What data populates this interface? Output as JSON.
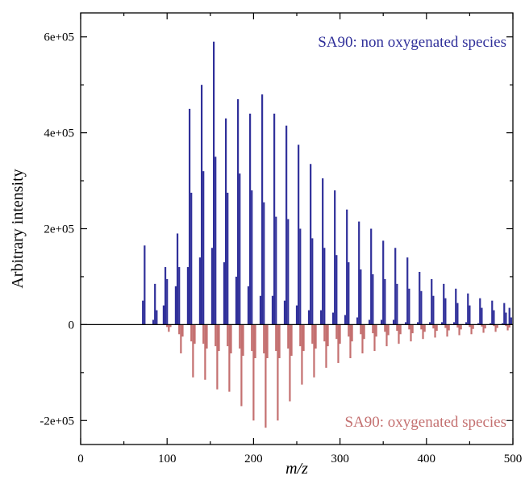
{
  "chart_data": {
    "type": "bar",
    "title": "",
    "xlabel": "m/z",
    "ylabel": "Arbitrary intensity",
    "xlim": [
      0,
      500
    ],
    "ylim": [
      -250000,
      650000
    ],
    "x_ticks": [
      0,
      100,
      200,
      300,
      400,
      500
    ],
    "x_tick_labels": [
      "0",
      "100",
      "200",
      "300",
      "400",
      "500"
    ],
    "y_ticks": [
      -200000,
      0,
      200000,
      400000,
      600000
    ],
    "y_tick_labels": [
      "-2e+05",
      "0",
      "2e+05",
      "4e+05",
      "6e+05"
    ],
    "grid": false,
    "legend": "none",
    "annotations": [
      {
        "text": "SA90: non oxygenated species",
        "series": "non_oxygenated",
        "placement": "top-right"
      },
      {
        "text": "SA90: oxygenated species",
        "series": "oxygenated",
        "placement": "bottom-right"
      }
    ],
    "series": [
      {
        "key": "non_oxygenated",
        "direction": "up",
        "color": "#30309a",
        "x": [
          72,
          74,
          84,
          86,
          88,
          96,
          98,
          100,
          110,
          112,
          114,
          124,
          126,
          128,
          138,
          140,
          142,
          152,
          154,
          156,
          166,
          168,
          170,
          180,
          182,
          184,
          194,
          196,
          198,
          208,
          210,
          212,
          222,
          224,
          226,
          236,
          238,
          240,
          250,
          252,
          254,
          264,
          266,
          268,
          278,
          280,
          282,
          292,
          294,
          296,
          306,
          308,
          310,
          320,
          322,
          324,
          334,
          336,
          338,
          348,
          350,
          352,
          362,
          364,
          366,
          376,
          378,
          380,
          390,
          392,
          394,
          404,
          406,
          408,
          418,
          420,
          422,
          432,
          434,
          436,
          446,
          448,
          450,
          460,
          462,
          464,
          474,
          476,
          478,
          488,
          490,
          492,
          496,
          498
        ],
        "values": [
          50000,
          165000,
          10000,
          85000,
          30000,
          40000,
          120000,
          95000,
          80000,
          190000,
          120000,
          120000,
          450000,
          275000,
          140000,
          500000,
          320000,
          160000,
          590000,
          350000,
          130000,
          430000,
          275000,
          100000,
          470000,
          315000,
          80000,
          440000,
          280000,
          60000,
          480000,
          255000,
          60000,
          440000,
          225000,
          50000,
          415000,
          220000,
          40000,
          375000,
          200000,
          30000,
          335000,
          180000,
          30000,
          305000,
          160000,
          25000,
          280000,
          145000,
          20000,
          240000,
          130000,
          15000,
          215000,
          115000,
          10000,
          200000,
          105000,
          10000,
          175000,
          95000,
          10000,
          160000,
          85000,
          5000,
          140000,
          75000,
          5000,
          110000,
          70000,
          5000,
          95000,
          60000,
          5000,
          85000,
          55000,
          5000,
          75000,
          45000,
          5000,
          65000,
          40000,
          3000,
          55000,
          35000,
          3000,
          50000,
          30000,
          3000,
          45000,
          25000,
          35000,
          15000
        ]
      },
      {
        "key": "oxygenated",
        "direction": "down",
        "color": "#c47070",
        "x": [
          100,
          102,
          104,
          114,
          116,
          118,
          128,
          130,
          132,
          142,
          144,
          146,
          156,
          158,
          160,
          170,
          172,
          174,
          184,
          186,
          188,
          198,
          200,
          202,
          212,
          214,
          216,
          226,
          228,
          230,
          240,
          242,
          244,
          254,
          256,
          258,
          268,
          270,
          272,
          282,
          284,
          286,
          296,
          298,
          300,
          310,
          312,
          314,
          324,
          326,
          328,
          338,
          340,
          342,
          352,
          354,
          356,
          366,
          368,
          370,
          380,
          382,
          384,
          394,
          396,
          398,
          408,
          410,
          412,
          422,
          424,
          426,
          436,
          438,
          440,
          450,
          452,
          454,
          464,
          466,
          468,
          478,
          480,
          482,
          492,
          494,
          496
        ],
        "values": [
          5000,
          15000,
          5000,
          20000,
          60000,
          25000,
          35000,
          110000,
          40000,
          40000,
          115000,
          50000,
          45000,
          135000,
          55000,
          45000,
          140000,
          60000,
          50000,
          170000,
          65000,
          55000,
          200000,
          70000,
          60000,
          215000,
          70000,
          55000,
          200000,
          70000,
          50000,
          160000,
          65000,
          45000,
          125000,
          55000,
          40000,
          110000,
          50000,
          35000,
          90000,
          45000,
          30000,
          80000,
          40000,
          25000,
          70000,
          35000,
          20000,
          60000,
          30000,
          18000,
          55000,
          25000,
          15000,
          45000,
          22000,
          13000,
          40000,
          20000,
          10000,
          35000,
          18000,
          10000,
          30000,
          15000,
          8000,
          27000,
          13000,
          7000,
          25000,
          12000,
          6000,
          22000,
          10000,
          5000,
          20000,
          9000,
          4000,
          17000,
          8000,
          3000,
          15000,
          7000,
          3000,
          12000,
          6000
        ]
      }
    ]
  }
}
